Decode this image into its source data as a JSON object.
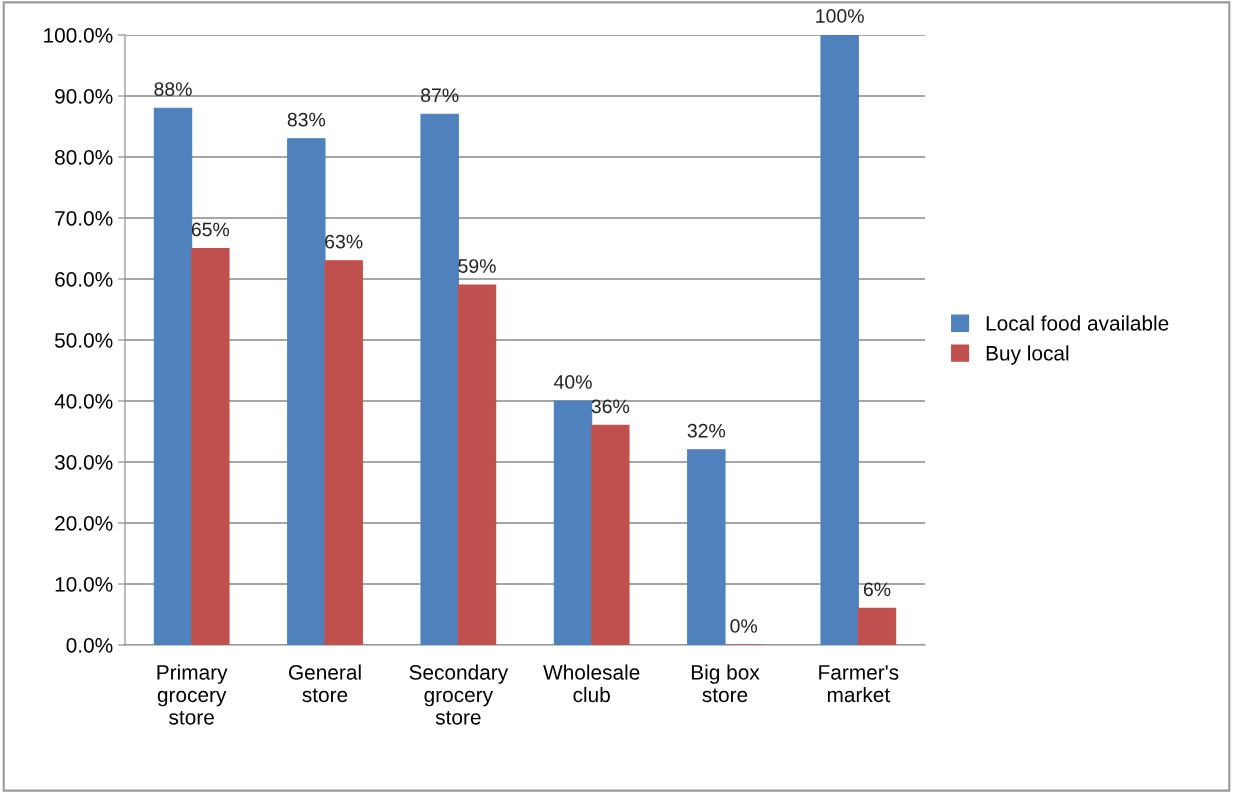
{
  "chart_data": {
    "type": "bar",
    "categories": [
      "Primary\ngrocery\nstore",
      "General\nstore",
      "Secondary\ngrocery\nstore",
      "Wholesale\nclub",
      "Big box\nstore",
      "Farmer's\nmarket"
    ],
    "series": [
      {
        "name": "Local food available",
        "color": "#4f81bd",
        "values": [
          88,
          83,
          87,
          40,
          32,
          100
        ],
        "value_labels": [
          "88%",
          "83%",
          "87%",
          "40%",
          "32%",
          "100%"
        ]
      },
      {
        "name": "Buy local",
        "color": "#c0504d",
        "values": [
          65,
          63,
          59,
          36,
          0,
          6
        ],
        "value_labels": [
          "65%",
          "63%",
          "59%",
          "36%",
          "0%",
          "6%"
        ]
      }
    ],
    "ylim": [
      0,
      100
    ],
    "yticks": [
      {
        "value": 0,
        "label": "0.0%"
      },
      {
        "value": 10,
        "label": "10.0%"
      },
      {
        "value": 20,
        "label": "20.0%"
      },
      {
        "value": 30,
        "label": "30.0%"
      },
      {
        "value": 40,
        "label": "40.0%"
      },
      {
        "value": 50,
        "label": "50.0%"
      },
      {
        "value": 60,
        "label": "60.0%"
      },
      {
        "value": 70,
        "label": "70.0%"
      },
      {
        "value": 80,
        "label": "80.0%"
      },
      {
        "value": 90,
        "label": "90.0%"
      },
      {
        "value": 100,
        "label": "100.0%"
      }
    ],
    "grid": "y",
    "legend": "right"
  }
}
